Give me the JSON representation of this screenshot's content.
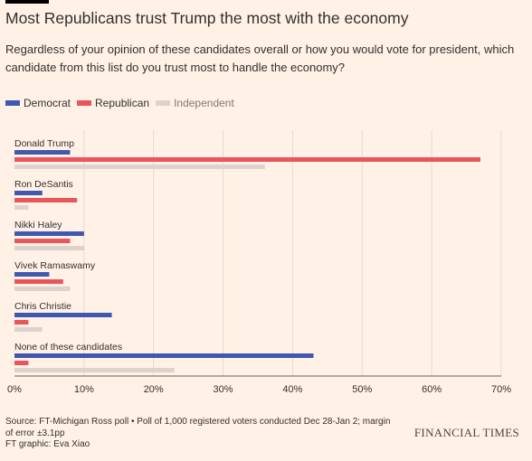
{
  "header": {
    "title": "Most Republicans trust Trump the most with the economy",
    "subtitle": "Regardless of your opinion of these candidates overall or how you would vote for president, which candidate from this list do you trust most to handle the economy?"
  },
  "footer": {
    "source": "Source: FT-Michigan Ross poll • Poll of 1,000 registered voters conducted Dec 28-Jan 2; margin of error ±3.1pp",
    "credit": "FT graphic: Eva Xiao",
    "brand": "FINANCIAL TIMES"
  },
  "colors": {
    "background": "#fff1e5",
    "Democrat": "#4059b0",
    "Republican": "#e8555a",
    "Independent": "#ddd2cc"
  },
  "chart_data": {
    "type": "bar",
    "orientation": "horizontal",
    "categories": [
      "Donald Trump",
      "Ron DeSantis",
      "Nikki Haley",
      "Vivek Ramaswamy",
      "Chris Christie",
      "None of these candidates"
    ],
    "series": [
      {
        "name": "Democrat",
        "values": [
          8,
          4,
          10,
          5,
          14,
          43
        ]
      },
      {
        "name": "Republican",
        "values": [
          67,
          9,
          8,
          7,
          2,
          2
        ]
      },
      {
        "name": "Independent",
        "values": [
          36,
          2,
          10,
          8,
          4,
          23
        ]
      }
    ],
    "xlim": [
      0,
      70
    ],
    "xticks": [
      0,
      10,
      20,
      30,
      40,
      50,
      60,
      70
    ],
    "tick_suffix": "%",
    "grid": true,
    "legend_position": "top-left"
  }
}
